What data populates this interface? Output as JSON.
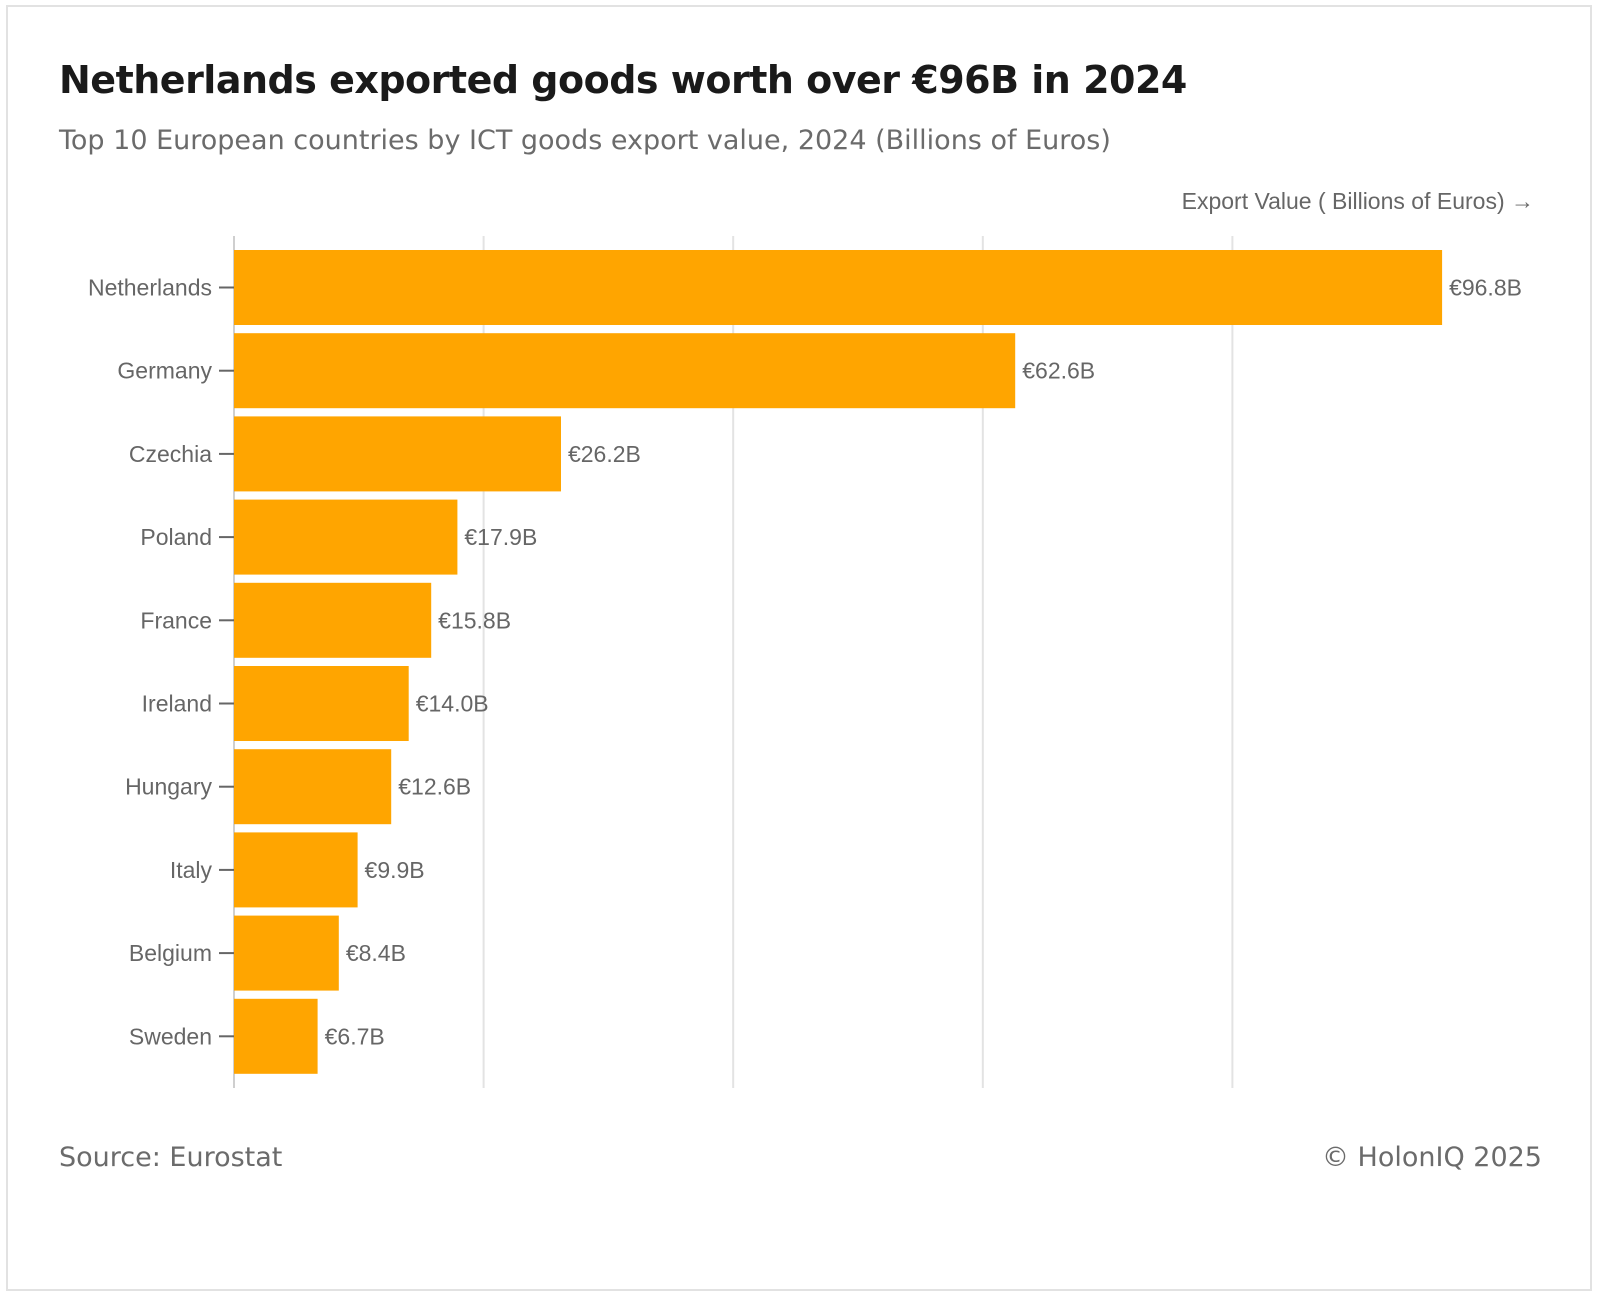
{
  "header": {
    "title": "Netherlands exported goods worth over €96B in 2024",
    "subtitle": "Top 10 European countries by ICT goods export value, 2024 (Billions of Euros)"
  },
  "footer": {
    "source": "Source: Eurostat",
    "credit": "© HolonIQ 2025"
  },
  "chart_data": {
    "type": "bar",
    "orientation": "horizontal",
    "title": "Netherlands exported goods worth over €96B in 2024",
    "subtitle": "Top 10 European countries by ICT goods export value, 2024 (Billions of Euros)",
    "xlabel": "Export Value ( Billions of Euros) →",
    "ylabel": "",
    "categories": [
      "Netherlands",
      "Germany",
      "Czechia",
      "Poland",
      "France",
      "Ireland",
      "Hungary",
      "Italy",
      "Belgium",
      "Sweden"
    ],
    "values": [
      96.8,
      62.6,
      26.2,
      17.9,
      15.8,
      14.0,
      12.6,
      9.9,
      8.4,
      6.7
    ],
    "data_labels": [
      "€96.8B",
      "€62.6B",
      "€26.2B",
      "€17.9B",
      "€15.8B",
      "€14.0B",
      "€12.6B",
      "€9.9B",
      "€8.4B",
      "€6.7B"
    ],
    "xlim": [
      0,
      110
    ],
    "x_gridlines": [
      0,
      20,
      40,
      60,
      80
    ],
    "grid": true,
    "legend": "none",
    "bar_color": "#FFA500"
  }
}
